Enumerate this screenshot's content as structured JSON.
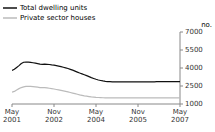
{
  "chart_data": {
    "type": "line",
    "y_label": "no.",
    "ylim": [
      1000,
      7000
    ],
    "yticks": [
      1000,
      2500,
      4000,
      5500,
      7000
    ],
    "legend": "upper left",
    "categories": [
      "May\n2001",
      null,
      null,
      null,
      null,
      null,
      null,
      null,
      null,
      null,
      null,
      null,
      null,
      null,
      null,
      null,
      null,
      null,
      "Nov\n2002",
      null,
      null,
      null,
      null,
      null,
      null,
      null,
      null,
      null,
      null,
      null,
      null,
      null,
      null,
      null,
      null,
      null,
      "May\n2004",
      null,
      null,
      null,
      null,
      null,
      null,
      null,
      null,
      null,
      null,
      null,
      null,
      null,
      null,
      null,
      null,
      null,
      "Nov\n2005",
      null,
      null,
      null,
      null,
      null,
      null,
      null,
      null,
      null,
      null,
      null,
      null,
      null,
      null,
      null,
      null,
      null,
      "May\n2007"
    ],
    "series": [
      {
        "name": "Total dwelling units",
        "color": "#111111",
        "values": [
          3800,
          3900,
          4050,
          4200,
          4380,
          4480,
          4500,
          4490,
          4470,
          4440,
          4400,
          4360,
          4320,
          4310,
          4330,
          4310,
          4290,
          4260,
          4240,
          4200,
          4160,
          4110,
          4060,
          4010,
          3960,
          3890,
          3820,
          3740,
          3660,
          3580,
          3510,
          3440,
          3360,
          3280,
          3200,
          3130,
          3060,
          3000,
          2960,
          2920,
          2890,
          2870,
          2860,
          2850,
          2840,
          2840,
          2840,
          2840,
          2840,
          2840,
          2840,
          2840,
          2840,
          2840,
          2840,
          2840,
          2840,
          2840,
          2840,
          2840,
          2850,
          2850,
          2860,
          2860,
          2860,
          2860,
          2860,
          2860,
          2860,
          2860,
          2860,
          2860,
          2860
        ]
      },
      {
        "name": "Private sector houses",
        "color": "#bbbbbb",
        "values": [
          1980,
          2050,
          2170,
          2280,
          2370,
          2430,
          2470,
          2480,
          2470,
          2450,
          2430,
          2400,
          2370,
          2360,
          2360,
          2340,
          2310,
          2280,
          2250,
          2210,
          2170,
          2130,
          2090,
          2050,
          2010,
          1960,
          1910,
          1860,
          1810,
          1760,
          1720,
          1680,
          1650,
          1620,
          1590,
          1570,
          1550,
          1540,
          1530,
          1520,
          1510,
          1510,
          1510,
          1510,
          1510,
          1510,
          1510,
          1510,
          1510,
          1510,
          1510,
          1510,
          1510,
          1510,
          1510,
          1510,
          1510,
          1510,
          1510,
          1510,
          1510,
          1510,
          1510,
          1510,
          1510,
          1510,
          1510,
          1510,
          1510,
          1510,
          1510,
          1510,
          1510
        ]
      }
    ]
  }
}
